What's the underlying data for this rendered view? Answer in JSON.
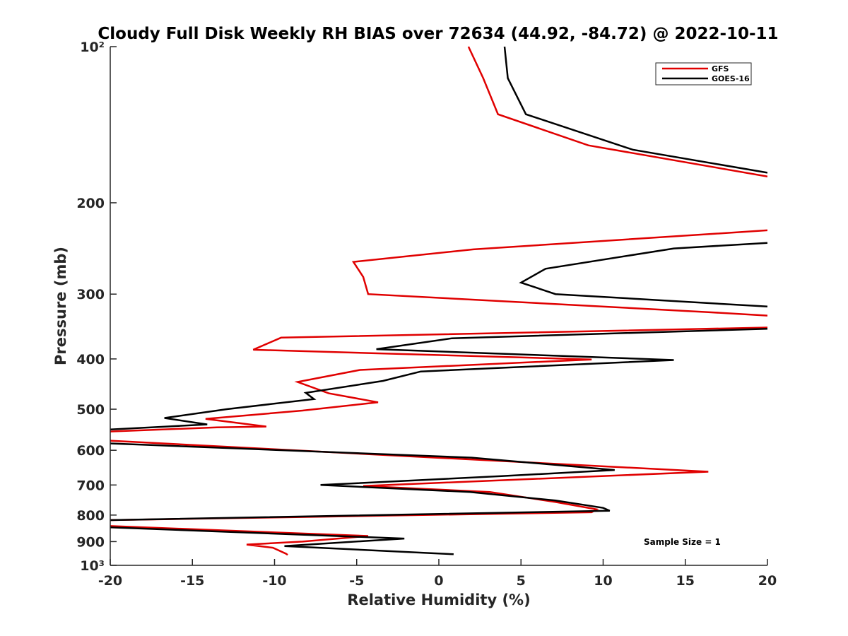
{
  "chart_data": {
    "type": "line",
    "title": "Cloudy Full Disk Weekly RH BIAS over 72634 (44.92, -84.72) @ 2022-10-11",
    "xlabel": "Relative Humidity (%)",
    "ylabel": "Pressure (mb)",
    "xlim": [
      -20,
      20
    ],
    "ylim": [
      100,
      1000
    ],
    "y_scale": "log",
    "y_reversed": true,
    "x_ticks": [
      -20,
      -15,
      -10,
      -5,
      0,
      5,
      10,
      15,
      20
    ],
    "x_tick_labels": [
      "-20",
      "-15",
      "-10",
      "-5",
      "0",
      "5",
      "10",
      "15",
      "20"
    ],
    "y_ticks": [
      100,
      200,
      300,
      400,
      500,
      600,
      700,
      800,
      900,
      1000
    ],
    "y_tick_labels": [
      "10²",
      "200",
      "300",
      "400",
      "500",
      "600",
      "700",
      "800",
      "900",
      "10³"
    ],
    "grid": false,
    "legend_position": "top-right",
    "annotation": "Sample Size = 1",
    "series": [
      {
        "name": "GFS",
        "color": "#e00000",
        "points": [
          [
            1.8,
            100
          ],
          [
            2.7,
            115
          ],
          [
            3.6,
            135
          ],
          [
            9.1,
            155
          ],
          [
            20,
            178
          ],
          [
            null,
            null
          ],
          [
            20,
            226
          ],
          [
            2.1,
            246
          ],
          [
            -5.2,
            260
          ],
          [
            -4.6,
            278
          ],
          [
            -4.3,
            300
          ],
          [
            16.4,
            325
          ],
          [
            20,
            330
          ],
          [
            null,
            null
          ],
          [
            20,
            348
          ],
          [
            -9.6,
            364
          ],
          [
            -11.3,
            384
          ],
          [
            9.3,
            401
          ],
          [
            -4.8,
            420
          ],
          [
            -8.6,
            443
          ],
          [
            -6.7,
            466
          ],
          [
            -3.7,
            485
          ],
          [
            -8.3,
            503
          ],
          [
            -14.2,
            522
          ],
          [
            -10.5,
            540
          ],
          [
            -13.5,
            542
          ],
          [
            -20,
            552
          ],
          [
            null,
            null
          ],
          [
            -20,
            575
          ],
          [
            -0.2,
            620
          ],
          [
            16.4,
            660
          ],
          [
            -4.6,
            703
          ],
          [
            3.1,
            722
          ],
          [
            7.1,
            755
          ],
          [
            9.6,
            780
          ],
          [
            9.3,
            790
          ],
          [
            -20,
            818
          ],
          [
            null,
            null
          ],
          [
            -20,
            840
          ],
          [
            -4.3,
            878
          ],
          [
            -8.3,
            900
          ],
          [
            -11.7,
            912
          ],
          [
            -10.1,
            925
          ],
          [
            -9.3,
            950
          ],
          [
            -9.2,
            955
          ]
        ]
      },
      {
        "name": "GOES-16",
        "color": "#000000",
        "points": [
          [
            4.0,
            100
          ],
          [
            4.2,
            115
          ],
          [
            5.3,
            135
          ],
          [
            11.8,
            158
          ],
          [
            20,
            175
          ],
          [
            null,
            null
          ],
          [
            20,
            239
          ],
          [
            14.3,
            245
          ],
          [
            6.5,
            268
          ],
          [
            5.0,
            285
          ],
          [
            7.1,
            300
          ],
          [
            20,
            317
          ],
          [
            null,
            null
          ],
          [
            20,
            350
          ],
          [
            0.8,
            365
          ],
          [
            -3.8,
            383
          ],
          [
            14.3,
            402
          ],
          [
            -1.1,
            423
          ],
          [
            -3.4,
            441
          ],
          [
            -8.1,
            465
          ],
          [
            -7.6,
            478
          ],
          [
            -12.9,
            500
          ],
          [
            -16.7,
            520
          ],
          [
            -14.1,
            535
          ],
          [
            -20,
            547
          ],
          [
            null,
            null
          ],
          [
            -20,
            582
          ],
          [
            2.0,
            620
          ],
          [
            10.7,
            655
          ],
          [
            3.8,
            673
          ],
          [
            -7.2,
            700
          ],
          [
            1.9,
            722
          ],
          [
            7.1,
            750
          ],
          [
            10.0,
            775
          ],
          [
            10.4,
            785
          ],
          [
            -20,
            818
          ],
          [
            null,
            null
          ],
          [
            -20,
            845
          ],
          [
            -2.1,
            888
          ],
          [
            -9.4,
            918
          ],
          [
            -5.7,
            930
          ],
          [
            0.9,
            952
          ]
        ]
      }
    ]
  }
}
